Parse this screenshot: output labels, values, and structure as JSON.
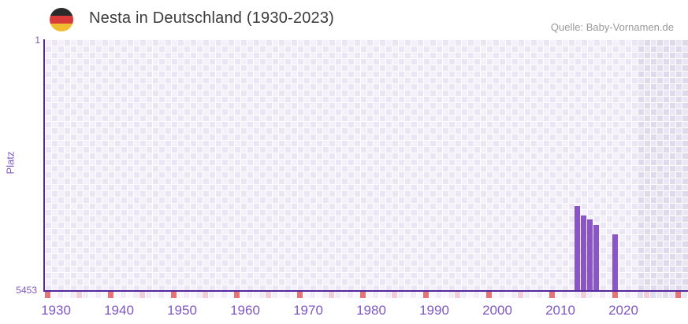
{
  "header": {
    "title": "Nesta in Deutschland (1930-2023)",
    "source": "Quelle: Baby-Vornamen.de",
    "flag_icon": "german-flag-icon",
    "flag_colors": [
      "#2a2a2a",
      "#d93a3a",
      "#f0bc30"
    ]
  },
  "y_axis": {
    "label": "Platz",
    "top_label": "1",
    "bottom_label": "5453"
  },
  "chart_data": {
    "type": "bar",
    "title": "Nesta in Deutschland (1930-2023)",
    "xlabel": "",
    "ylabel": "Platz",
    "y_min": 1,
    "y_max": 5453,
    "y_inverted": true,
    "x_start": 1930,
    "x_end": 2031,
    "data_end_year": 2023,
    "x_ticks": [
      1930,
      1940,
      1950,
      1960,
      1970,
      1980,
      1990,
      2000,
      2010,
      2020
    ],
    "grid": "checkerboard, one column per year, future years (after 2023) shaded darker",
    "legend": "none",
    "series": [
      {
        "name": "Platz von Nesta",
        "points": [
          {
            "year": 2014,
            "rank": 3615
          },
          {
            "year": 2015,
            "rank": 3835
          },
          {
            "year": 2016,
            "rank": 3920
          },
          {
            "year": 2017,
            "rank": 4030
          },
          {
            "year": 2020,
            "rank": 4235
          }
        ]
      }
    ]
  },
  "colors": {
    "bar": "#8a56c5",
    "axis_line": "#53289c",
    "axis_text": "#7e57c2",
    "title_text": "#3b3b3b",
    "source_text": "#999999",
    "checker_light": "#f5f1fb",
    "checker_dark": "#ece5f6",
    "future_light": "#eae6f3",
    "future_dark": "#dfd9ec",
    "decade_tick": "#e57378",
    "half_decade_tick": "#f1cdd9",
    "tick_plain_even": "#f1ecf8",
    "tick_plain_odd": "#f9f6fc",
    "tick_future_even": "#e2ddee",
    "tick_future_odd": "#eae6f3"
  }
}
